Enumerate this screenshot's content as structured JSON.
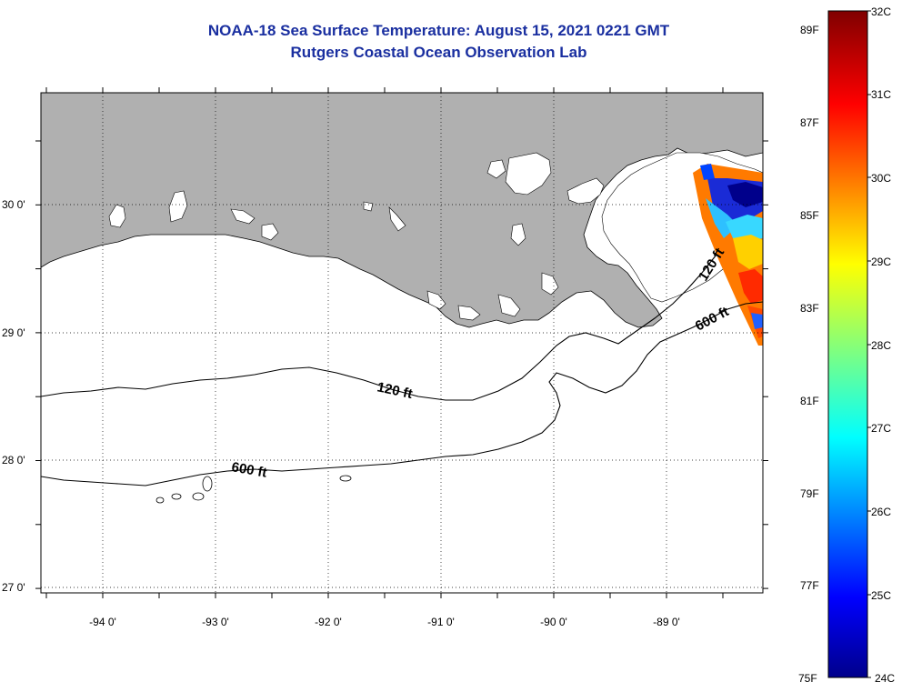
{
  "title": {
    "line1": "NOAA-18 Sea Surface Temperature:  August 15, 2021 0221 GMT",
    "line2": "Rutgers Coastal Ocean Observation Lab"
  },
  "map": {
    "lat_labels": [
      "30 0'",
      "29 0'",
      "28 0'",
      "27 0'"
    ],
    "lon_labels": [
      "-94 0'",
      "-93 0'",
      "-92 0'",
      "-91 0'",
      "-90 0'",
      "-89 0'"
    ],
    "contours": [
      {
        "name": "120 ft",
        "label": "120 ft"
      },
      {
        "name": "120 ft-east",
        "label": "120 ft"
      },
      {
        "name": "600 ft",
        "label": "600 ft"
      },
      {
        "name": "600 ft-east",
        "label": "600 ft"
      }
    ],
    "colors": {
      "land": "#b0b0b0",
      "ocean": "#ffffff",
      "coast": "#000000"
    }
  },
  "colorbar": {
    "celsius_labels": [
      "32C",
      "31C",
      "30C",
      "29C",
      "28C",
      "27C",
      "26C",
      "25C",
      "24C"
    ],
    "fahrenheit_labels": [
      "89F",
      "87F",
      "85F",
      "83F",
      "81F",
      "79F",
      "77F",
      "75F"
    ],
    "colormap": "jet"
  }
}
